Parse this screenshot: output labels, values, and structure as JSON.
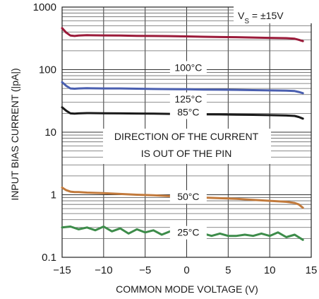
{
  "chart_data": {
    "type": "line",
    "xlabel": "COMMON MODE VOLTAGE (V)",
    "ylabel": "INPUT BIAS CURRENT (|pA|)",
    "xlim": [
      -15,
      15
    ],
    "ylim": [
      0.1,
      1000
    ],
    "yscale": "log",
    "grid": true,
    "x_tick_labels": [
      "−15",
      "−10",
      "−5",
      "0",
      "5",
      "10",
      "15"
    ],
    "x_ticks": [
      -15,
      -10,
      -5,
      0,
      5,
      10,
      15
    ],
    "y_tick_labels": [
      "0.1",
      "1",
      "10",
      "100",
      "1000"
    ],
    "y_ticks": [
      0.1,
      1,
      10,
      100,
      1000
    ],
    "annotations": {
      "supply": "V",
      "supply_sub": "S",
      "supply_rest": " = ±15V",
      "direction_line1": "DIRECTION OF THE CURRENT",
      "direction_line2": "IS OUT OF THE PIN"
    },
    "series": [
      {
        "name": "125°C",
        "color": "#9b1b3a",
        "x": [
          -15,
          -14.5,
          -14,
          -13.5,
          -13,
          -12,
          -10,
          -8,
          -6,
          -4,
          -2,
          0,
          2,
          4,
          6,
          8,
          10,
          12,
          13,
          13.5,
          14
        ],
        "y": [
          460,
          390,
          350,
          345,
          350,
          355,
          352,
          350,
          347,
          345,
          343,
          340,
          335,
          332,
          330,
          326,
          322,
          318,
          312,
          300,
          285
        ]
      },
      {
        "name": "100°C",
        "color": "#4a5fb0",
        "x": [
          -15,
          -14.5,
          -14,
          -13.5,
          -13,
          -12,
          -10,
          -8,
          -6,
          -4,
          -2,
          0,
          2,
          4,
          6,
          8,
          10,
          12,
          13,
          13.5,
          14
        ],
        "y": [
          63,
          55,
          50,
          49.5,
          50,
          50.5,
          50,
          50,
          49.5,
          49,
          48.8,
          48.5,
          48,
          47.8,
          47.5,
          47,
          46.5,
          46,
          45.5,
          44,
          42
        ]
      },
      {
        "name": "85°C",
        "color": "#1a1a1a",
        "x": [
          -15,
          -14.5,
          -14,
          -13.5,
          -13,
          -12,
          -10,
          -8,
          -6,
          -4,
          -2,
          0,
          2,
          4,
          6,
          8,
          10,
          12,
          13,
          13.5,
          14
        ],
        "y": [
          25,
          22,
          20,
          19.8,
          20,
          20.2,
          20.1,
          20,
          19.9,
          19.8,
          19.6,
          19.5,
          19.3,
          19.2,
          19,
          18.9,
          18.7,
          18.5,
          18.2,
          17.5,
          16.5
        ]
      },
      {
        "name": "50°C",
        "color": "#c27a3c",
        "x": [
          -15,
          -14.5,
          -14,
          -13.5,
          -13,
          -12,
          -10,
          -8,
          -6,
          -4,
          -2,
          0,
          2,
          4,
          6,
          8,
          10,
          12,
          13,
          13.5,
          14
        ],
        "y": [
          1.3,
          1.18,
          1.12,
          1.1,
          1.1,
          1.08,
          1.06,
          1.03,
          1.0,
          0.98,
          0.95,
          0.93,
          0.9,
          0.88,
          0.86,
          0.83,
          0.8,
          0.77,
          0.74,
          0.7,
          0.62
        ]
      },
      {
        "name": "25°C",
        "color": "#3d8c4a",
        "x": [
          -15,
          -14,
          -13,
          -12,
          -11,
          -10,
          -9,
          -8,
          -7,
          -6,
          -5,
          -4,
          -3,
          -2,
          -1,
          0,
          1,
          2,
          3,
          4,
          5,
          6,
          7,
          8,
          9,
          10,
          11,
          12,
          13,
          14
        ],
        "y": [
          0.3,
          0.31,
          0.28,
          0.3,
          0.27,
          0.31,
          0.26,
          0.29,
          0.24,
          0.28,
          0.25,
          0.27,
          0.23,
          0.26,
          0.22,
          0.25,
          0.23,
          0.24,
          0.22,
          0.24,
          0.22,
          0.22,
          0.23,
          0.22,
          0.24,
          0.22,
          0.25,
          0.21,
          0.23,
          0.19
        ]
      }
    ]
  }
}
